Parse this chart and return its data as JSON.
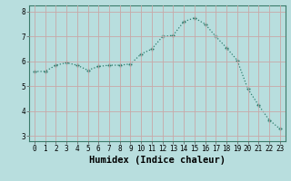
{
  "x": [
    0,
    1,
    2,
    3,
    4,
    5,
    6,
    7,
    8,
    9,
    10,
    11,
    12,
    13,
    14,
    15,
    16,
    17,
    18,
    19,
    20,
    21,
    22,
    23
  ],
  "y": [
    5.6,
    5.6,
    5.85,
    5.95,
    5.85,
    5.65,
    5.8,
    5.85,
    5.85,
    5.9,
    6.3,
    6.5,
    7.0,
    7.05,
    7.6,
    7.75,
    7.5,
    7.0,
    6.55,
    6.05,
    4.9,
    4.25,
    3.65,
    3.3
  ],
  "line_color": "#2e7d6e",
  "marker": "+",
  "bg_color": "#b8dede",
  "grid_color": "#c8a8a8",
  "xlabel": "Humidex (Indice chaleur)",
  "ylim": [
    2.8,
    8.25
  ],
  "xlim": [
    -0.5,
    23.5
  ],
  "yticks": [
    3,
    4,
    5,
    6,
    7,
    8
  ],
  "xticks": [
    0,
    1,
    2,
    3,
    4,
    5,
    6,
    7,
    8,
    9,
    10,
    11,
    12,
    13,
    14,
    15,
    16,
    17,
    18,
    19,
    20,
    21,
    22,
    23
  ],
  "tick_fontsize": 5.5,
  "xlabel_fontsize": 7.5
}
